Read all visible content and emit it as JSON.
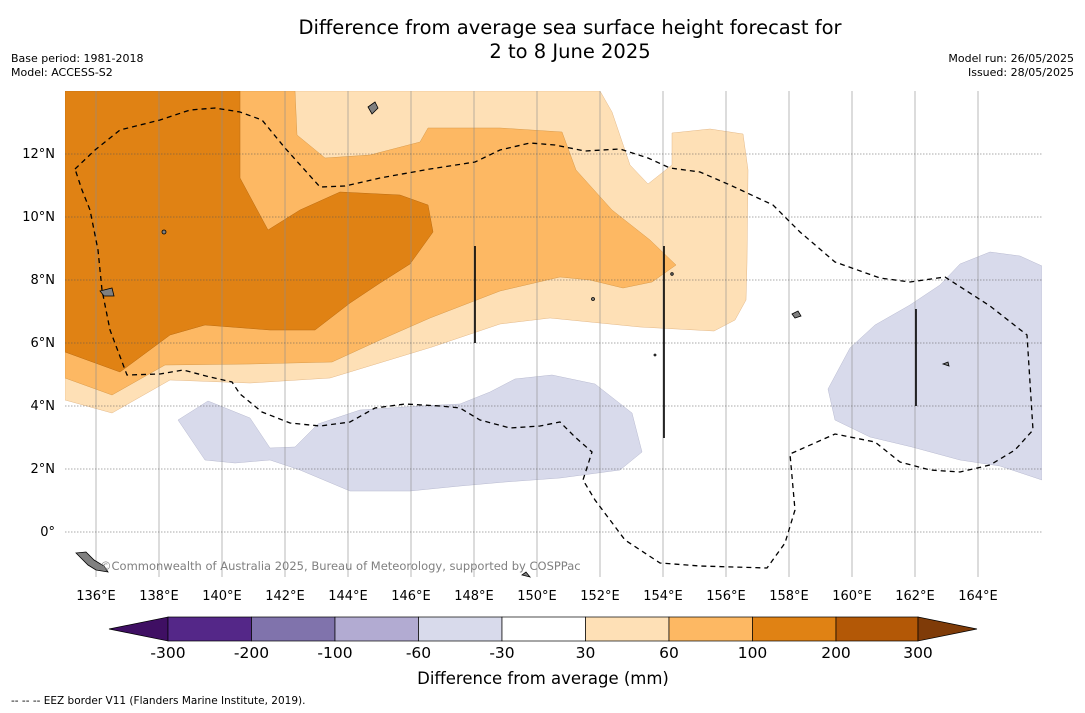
{
  "title": {
    "line1": "Difference from average sea surface height forecast for",
    "line2": "2 to 8 June 2025"
  },
  "meta_left": {
    "base_period": "Base period: 1981-2018",
    "model": "Model: ACCESS-S2"
  },
  "meta_right": {
    "model_run": "Model run: 26/05/2025",
    "issued": "Issued: 28/05/2025"
  },
  "credit": "©Commonwealth of Australia 2025, Bureau of Meteorology, supported by COSPPac",
  "footnote": "--  --  -- EEZ border V11 (Flanders Marine Institute, 2019).",
  "longitude_labels": [
    "136°E",
    "138°E",
    "140°E",
    "142°E",
    "144°E",
    "146°E",
    "148°E",
    "150°E",
    "152°E",
    "154°E",
    "156°E",
    "158°E",
    "160°E",
    "162°E",
    "164°E"
  ],
  "latitude_labels": [
    "12°N",
    "10°N",
    "8°N",
    "6°N",
    "4°N",
    "2°N",
    "0°"
  ],
  "colorbar": {
    "title": "Difference from average (mm)",
    "tick_labels": [
      "-300",
      "-200",
      "-100",
      "-60",
      "-30",
      "30",
      "60",
      "100",
      "200",
      "300"
    ],
    "colors": [
      "#3f0f63",
      "#542788",
      "#8073ac",
      "#b2abd2",
      "#d8daeb",
      "#ffffff",
      "#fee0b6",
      "#fdb863",
      "#e08214",
      "#b35806",
      "#7f3b08"
    ]
  },
  "map_colors": {
    "water": "#ffffff",
    "light_orange": "#fee0b6",
    "mid_orange": "#fdb863",
    "dark_orange": "#e08214",
    "light_purple": "#d8daeb",
    "land": "#808080"
  }
}
